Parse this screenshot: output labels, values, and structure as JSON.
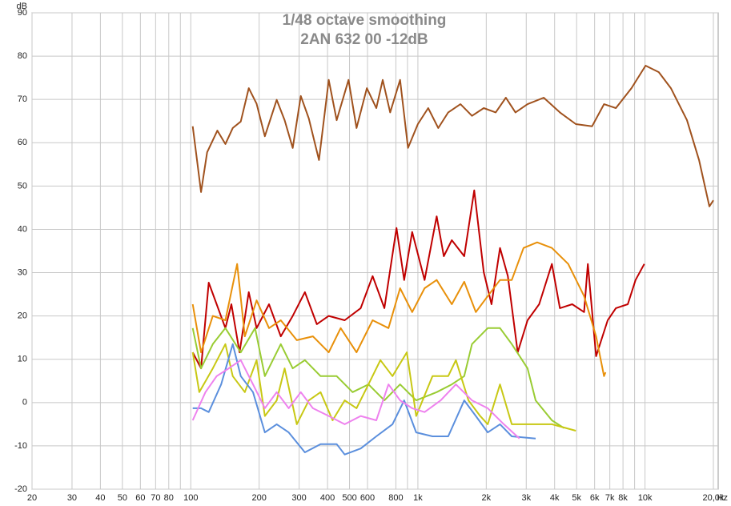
{
  "chart_data": {
    "type": "line",
    "title": "1/48 octave smoothing",
    "subtitle": "2AN 632 00 -12dB",
    "ylabel": "dB",
    "xlabel": "Hz",
    "xscale": "log",
    "grid": true,
    "xlim": [
      20,
      21000
    ],
    "ylim": [
      -20,
      90
    ],
    "yticks": [
      -20,
      -10,
      0,
      10,
      20,
      30,
      40,
      50,
      60,
      70,
      80,
      90
    ],
    "xticks": [
      20,
      30,
      40,
      50,
      60,
      70,
      80,
      100,
      200,
      300,
      400,
      500,
      600,
      800,
      {
        "value": 1000,
        "label": "1k"
      },
      {
        "value": 2000,
        "label": "2k"
      },
      {
        "value": 3000,
        "label": "3k"
      },
      {
        "value": 4000,
        "label": "4k"
      },
      {
        "value": 5000,
        "label": "5k"
      },
      {
        "value": 6000,
        "label": "6k"
      },
      {
        "value": 7000,
        "label": "7k"
      },
      {
        "value": 8000,
        "label": "8k"
      },
      {
        "value": 10000,
        "label": "10k"
      },
      {
        "value": 20000,
        "label": "20,0k"
      }
    ],
    "minor_xticks": [
      90,
      900,
      9000
    ],
    "series": [
      {
        "color": "#a0521e",
        "x": [
          102,
          111,
          118,
          131,
          142,
          153,
          166,
          180,
          195,
          212,
          239,
          259,
          281,
          305,
          331,
          367,
          405,
          439,
          495,
          537,
          596,
          656,
          700,
          755,
          835,
          905,
          1000,
          1110,
          1230,
          1360,
          1540,
          1730,
          1950,
          2200,
          2440,
          2690,
          3040,
          3580,
          4220,
          4960,
          5850,
          6600,
          7440,
          8720,
          10060,
          11500,
          13000,
          15300,
          17300,
          19200,
          20000
        ],
        "values": [
          63.8,
          48.6,
          57.8,
          62.8,
          59.7,
          63.4,
          64.9,
          72.6,
          69,
          61.5,
          69.9,
          65.2,
          58.8,
          70.8,
          65.6,
          56,
          74.5,
          65.2,
          74.5,
          63.4,
          72.6,
          68,
          74.5,
          67,
          74.5,
          58.8,
          64.3,
          68,
          63.4,
          67,
          68.9,
          66.2,
          68,
          67,
          70.4,
          67,
          68.9,
          70.4,
          67,
          64.3,
          63.8,
          68.9,
          68,
          72.6,
          77.8,
          76.3,
          72.6,
          65.2,
          56,
          45.3,
          46.7
        ]
      },
      {
        "color": "#c00000",
        "x": [
          102,
          111,
          120,
          130,
          142,
          151,
          164,
          180,
          195,
          221,
          249,
          281,
          318,
          359,
          405,
          476,
          560,
          632,
          712,
          805,
          870,
          944,
          1070,
          1210,
          1300,
          1410,
          1600,
          1770,
          1950,
          2110,
          2300,
          2490,
          2750,
          3040,
          3420,
          3890,
          4220,
          4780,
          5390,
          5600,
          6090,
          6850,
          7440,
          8400,
          9090,
          9930
        ],
        "values": [
          11.6,
          7.9,
          27.7,
          22.7,
          17.2,
          22.7,
          11.6,
          25.5,
          17.2,
          22.7,
          15.3,
          20,
          25.5,
          18.1,
          20,
          19,
          21.8,
          29.2,
          21.8,
          40.3,
          28.3,
          39.4,
          28.3,
          43,
          33.8,
          37.5,
          33.8,
          49,
          30.1,
          22.7,
          35.7,
          29.2,
          11.6,
          19,
          22.7,
          32,
          21.8,
          22.7,
          20.9,
          32,
          10.7,
          19,
          21.8,
          22.7,
          28.3,
          32
        ]
      },
      {
        "color": "#e8900a",
        "x": [
          102,
          111,
          125,
          142,
          160,
          173,
          195,
          221,
          249,
          293,
          345,
          405,
          457,
          537,
          632,
          742,
          835,
          944,
          1070,
          1210,
          1410,
          1600,
          1800,
          2030,
          2300,
          2590,
          2920,
          3350,
          3890,
          4590,
          5390,
          6090,
          6600,
          6700
        ],
        "values": [
          22.7,
          11.6,
          20,
          19,
          32,
          15.3,
          23.6,
          17.2,
          19,
          14.4,
          15.3,
          11.6,
          17.2,
          11.6,
          19,
          17.2,
          26.4,
          20.9,
          26.4,
          28.3,
          22.7,
          27.9,
          20.9,
          24.6,
          28.3,
          28.3,
          35.7,
          37,
          35.7,
          32,
          24.6,
          15.3,
          6.1,
          7
        ]
      },
      {
        "color": "#99cc33",
        "x": [
          102,
          111,
          125,
          142,
          166,
          192,
          212,
          249,
          281,
          318,
          373,
          439,
          516,
          606,
          712,
          835,
          983,
          1210,
          1410,
          1600,
          1730,
          2030,
          2300,
          2590,
          3040,
          3300,
          3890,
          4400
        ],
        "values": [
          17.2,
          7.9,
          13.5,
          17.2,
          11.6,
          17.2,
          6.1,
          13.5,
          7.9,
          9.8,
          6.1,
          6.1,
          2.4,
          4.2,
          0.5,
          4.2,
          0.5,
          2.4,
          4.2,
          6.1,
          13.5,
          17.2,
          17.2,
          13.5,
          7.9,
          0.5,
          -4.1,
          -5.9
        ]
      },
      {
        "color": "#c8c814",
        "x": [
          102,
          109,
          125,
          142,
          153,
          173,
          195,
          212,
          239,
          259,
          293,
          331,
          373,
          421,
          476,
          537,
          606,
          684,
          773,
          894,
          983,
          1160,
          1360,
          1470,
          1670,
          1880,
          2030,
          2300,
          2590,
          3040,
          3890,
          4960
        ],
        "values": [
          11.6,
          2.4,
          7.9,
          13.5,
          6.1,
          2.4,
          9.8,
          -3.1,
          0.5,
          7.9,
          -5,
          0.5,
          2.4,
          -4.1,
          0.5,
          -1.3,
          4.2,
          9.8,
          6.1,
          11.6,
          -3.1,
          6.1,
          6.1,
          9.8,
          0.5,
          -3.1,
          -5,
          4.2,
          -5,
          -5,
          -5,
          -6.5
        ]
      },
      {
        "color": "#5b8fdd",
        "x": [
          102,
          111,
          120,
          136,
          153,
          166,
          188,
          212,
          239,
          270,
          318,
          373,
          439,
          476,
          560,
          656,
          773,
          870,
          983,
          1160,
          1360,
          1600,
          1800,
          2030,
          2300,
          2590,
          3300
        ],
        "values": [
          -1.3,
          -1.3,
          -2.2,
          4.2,
          13.5,
          6.1,
          2.4,
          -6.9,
          -5,
          -6.9,
          -11.5,
          -9.6,
          -9.6,
          -12,
          -10.6,
          -7.8,
          -5,
          0.5,
          -6.9,
          -7.8,
          -7.8,
          0.5,
          -3.1,
          -6.9,
          -5,
          -7.8,
          -8.3
        ]
      },
      {
        "color": "#ee82ee",
        "x": [
          102,
          116,
          130,
          147,
          166,
          188,
          212,
          239,
          270,
          305,
          345,
          405,
          476,
          560,
          656,
          742,
          835,
          944,
          1070,
          1260,
          1470,
          1730,
          2030,
          2390,
          2800
        ],
        "values": [
          -4.1,
          2.4,
          6.1,
          7.9,
          9.8,
          4.2,
          -1.3,
          2.4,
          -1.3,
          2.4,
          -1.3,
          -3.1,
          -5,
          -3.1,
          -4.1,
          4.2,
          0.5,
          -1.3,
          -2.2,
          0.5,
          4.2,
          0.5,
          -1.3,
          -5,
          -8.3
        ]
      }
    ]
  }
}
